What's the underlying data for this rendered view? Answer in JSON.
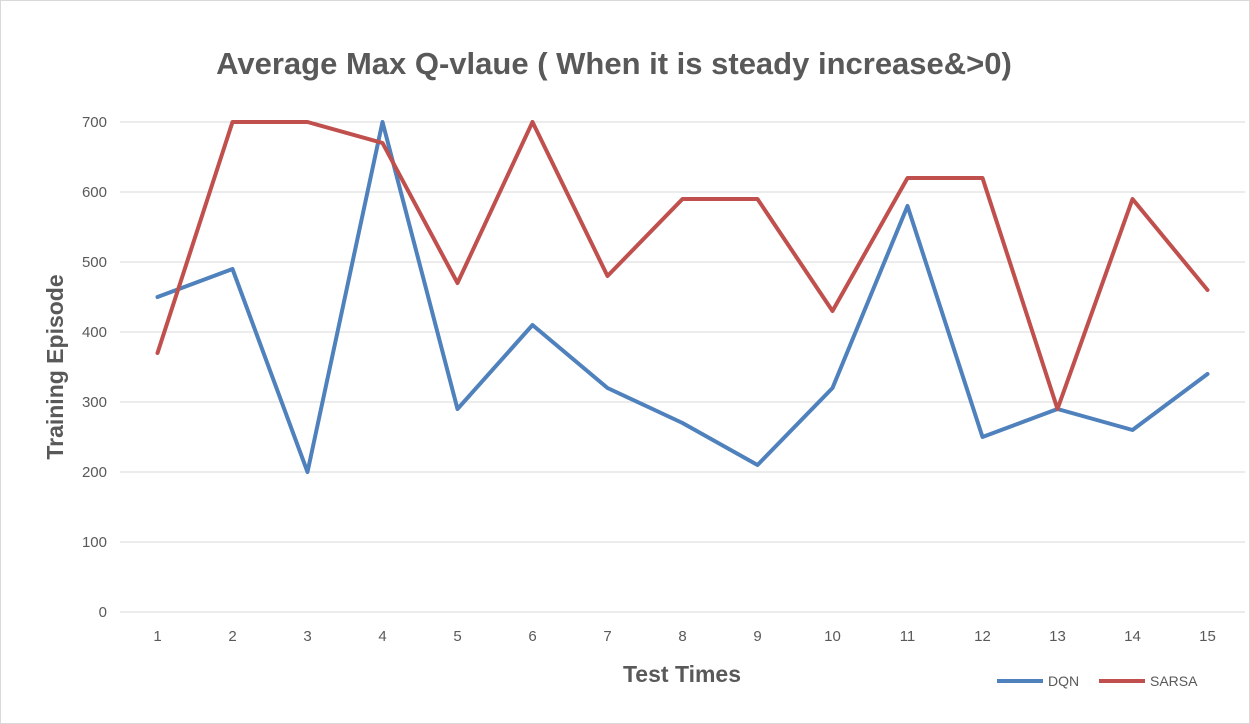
{
  "chart_data": {
    "type": "line",
    "title": "Average Max Q-vlaue ( When it is steady increase&>0)",
    "xlabel": "Test Times",
    "ylabel": "Training Episode",
    "categories": [
      "1",
      "2",
      "3",
      "4",
      "5",
      "6",
      "7",
      "8",
      "9",
      "10",
      "11",
      "12",
      "13",
      "14",
      "15"
    ],
    "ylim": [
      0,
      700
    ],
    "yticks": [
      0,
      100,
      200,
      300,
      400,
      500,
      600,
      700
    ],
    "grid": true,
    "legend_position": "bottom-right",
    "series": [
      {
        "name": "DQN",
        "color": "#4f81bd",
        "values": [
          450,
          490,
          200,
          700,
          290,
          410,
          320,
          270,
          210,
          320,
          580,
          250,
          290,
          260,
          340
        ]
      },
      {
        "name": "SARSA",
        "color": "#c0504d",
        "values": [
          370,
          700,
          700,
          670,
          470,
          700,
          480,
          590,
          590,
          430,
          620,
          620,
          290,
          590,
          460
        ]
      }
    ]
  }
}
